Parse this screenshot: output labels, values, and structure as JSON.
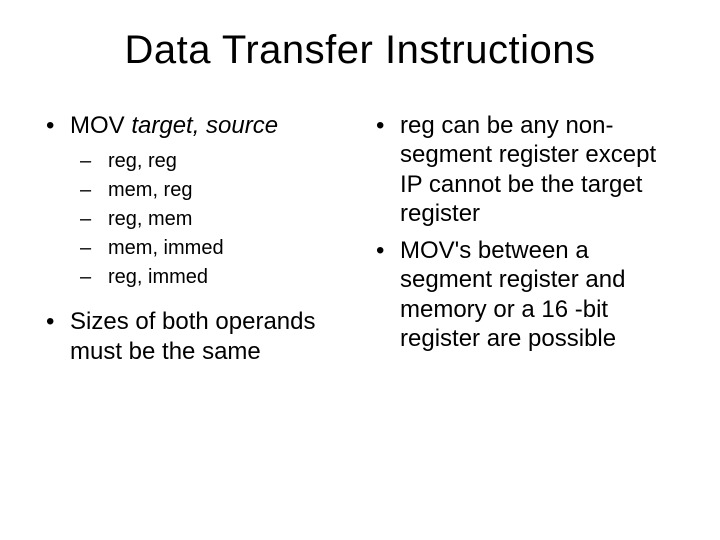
{
  "title": "Data Transfer Instructions",
  "left": {
    "main1_prefix": "MOV ",
    "main1_italic": "target, source",
    "sub": [
      "reg, reg",
      "mem, reg",
      "reg, mem",
      "mem, immed",
      "reg, immed"
    ],
    "main2": "Sizes of both operands must be the same"
  },
  "right": {
    "b1": "reg can be any non-segment register except IP cannot be the target register",
    "b2": "MOV's between a segment register and memory or a 16 -bit register are possible"
  },
  "style": {
    "background_color": "#ffffff",
    "text_color": "#000000",
    "title_fontsize": 40,
    "body_fontsize": 24,
    "sub_fontsize": 20,
    "font_family": "Arial"
  }
}
